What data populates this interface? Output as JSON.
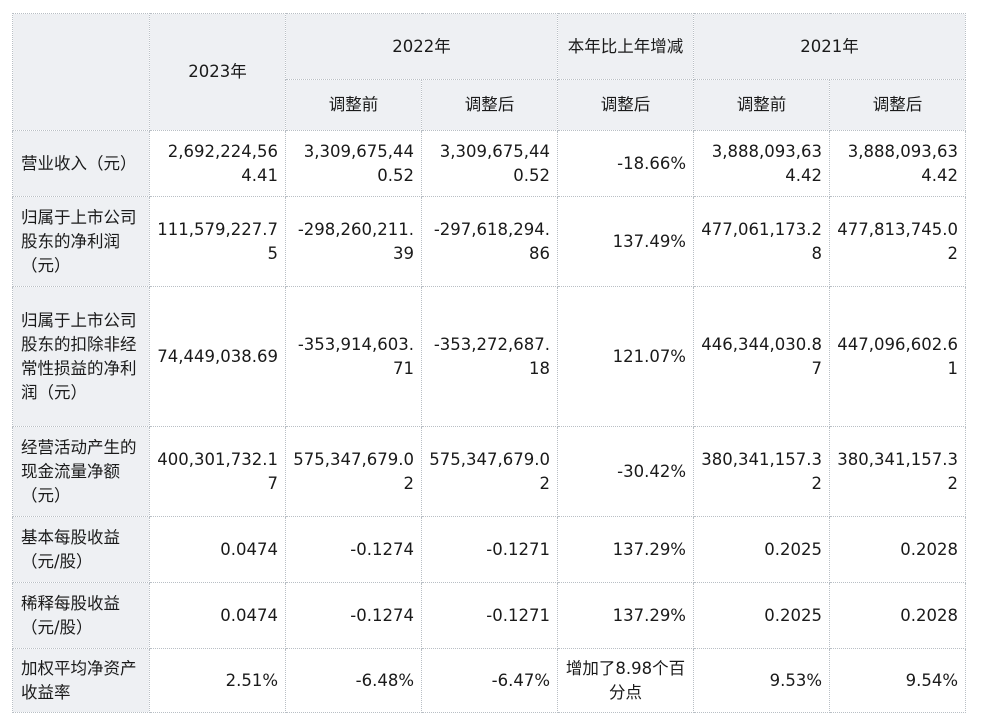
{
  "header": {
    "col_2023": "2023年",
    "col_2022": "2022年",
    "col_change": "本年比上年增减",
    "col_2021": "2021年",
    "sub_before": "调整前",
    "sub_after": "调整后",
    "sub_change": "调整后",
    "sub_before_2021": "调整前",
    "sub_after_2021": "调整后"
  },
  "rows": [
    {
      "label": "营业收入（元）",
      "y2023": "2,692,224,564.41",
      "y2022_before": "3,309,675,440.52",
      "y2022_after": "3,309,675,440.52",
      "change": "-18.66%",
      "y2021_before": "3,888,093,634.42",
      "y2021_after": "3,888,093,634.42"
    },
    {
      "label": "归属于上市公司股东的净利润（元）",
      "y2023": "111,579,227.75",
      "y2022_before": "-298,260,211.39",
      "y2022_after": "-297,618,294.86",
      "change": "137.49%",
      "y2021_before": "477,061,173.28",
      "y2021_after": "477,813,745.02"
    },
    {
      "label": "归属于上市公司股东的扣除非经常性损益的净利润（元）",
      "y2023": "74,449,038.69",
      "y2022_before": "-353,914,603.71",
      "y2022_after": "-353,272,687.18",
      "change": "121.07%",
      "y2021_before": "446,344,030.87",
      "y2021_after": "447,096,602.61"
    },
    {
      "label": "经营活动产生的现金流量净额（元）",
      "y2023": "400,301,732.17",
      "y2022_before": "575,347,679.02",
      "y2022_after": "575,347,679.02",
      "change": "-30.42%",
      "y2021_before": "380,341,157.32",
      "y2021_after": "380,341,157.32"
    },
    {
      "label": "基本每股收益（元/股）",
      "y2023": "0.0474",
      "y2022_before": "-0.1274",
      "y2022_after": "-0.1271",
      "change": "137.29%",
      "y2021_before": "0.2025",
      "y2021_after": "0.2028"
    },
    {
      "label": "稀释每股收益（元/股）",
      "y2023": "0.0474",
      "y2022_before": "-0.1274",
      "y2022_after": "-0.1271",
      "change": "137.29%",
      "y2021_before": "0.2025",
      "y2021_after": "0.2028"
    },
    {
      "label": "加权平均净资产收益率",
      "y2023": "2.51%",
      "y2022_before": "-6.48%",
      "y2022_after": "-6.47%",
      "change": "增加了8.98个百分点",
      "y2021_before": "9.53%",
      "y2021_after": "9.54%"
    }
  ]
}
